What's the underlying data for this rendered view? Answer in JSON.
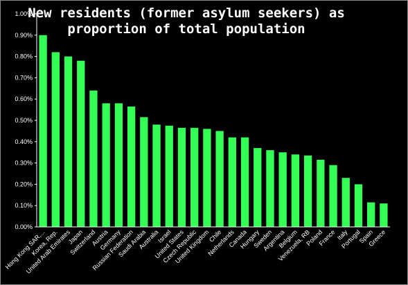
{
  "chart_data": {
    "type": "bar",
    "title_lines": [
      "New residents (former asylum seekers) as",
      "proportion of total population"
    ],
    "xlabel": "",
    "ylabel": "",
    "ylim": [
      0,
      1.0
    ],
    "yticks": [
      "0.00%",
      "0.10%",
      "0.20%",
      "0.30%",
      "0.40%",
      "0.50%",
      "0.60%",
      "0.70%",
      "0.80%",
      "0.90%",
      "1.00%"
    ],
    "grid": false,
    "legend": "none",
    "bar_color": "#33ff55",
    "categories": [
      "Hong Kong SAR,...",
      "Korea, Rep.",
      "United Arab Emirates",
      "Japan",
      "Switzerland",
      "Austria",
      "Germany",
      "Russian Federation",
      "Saudi Arabia",
      "Australia",
      "Israel",
      "United States",
      "Czech Republic",
      "United Kingdom",
      "Chile",
      "Netherlands",
      "Canada",
      "Hungary",
      "Sweden",
      "Argentina",
      "Belgium",
      "Venezuela, RB",
      "Poland",
      "France",
      "Italy",
      "Portugal",
      "Spain",
      "Greece"
    ],
    "values": [
      0.9,
      0.82,
      0.8,
      0.78,
      0.64,
      0.58,
      0.58,
      0.565,
      0.515,
      0.48,
      0.475,
      0.465,
      0.465,
      0.46,
      0.45,
      0.42,
      0.42,
      0.37,
      0.36,
      0.35,
      0.34,
      0.335,
      0.315,
      0.29,
      0.23,
      0.2,
      0.115,
      0.11
    ]
  }
}
